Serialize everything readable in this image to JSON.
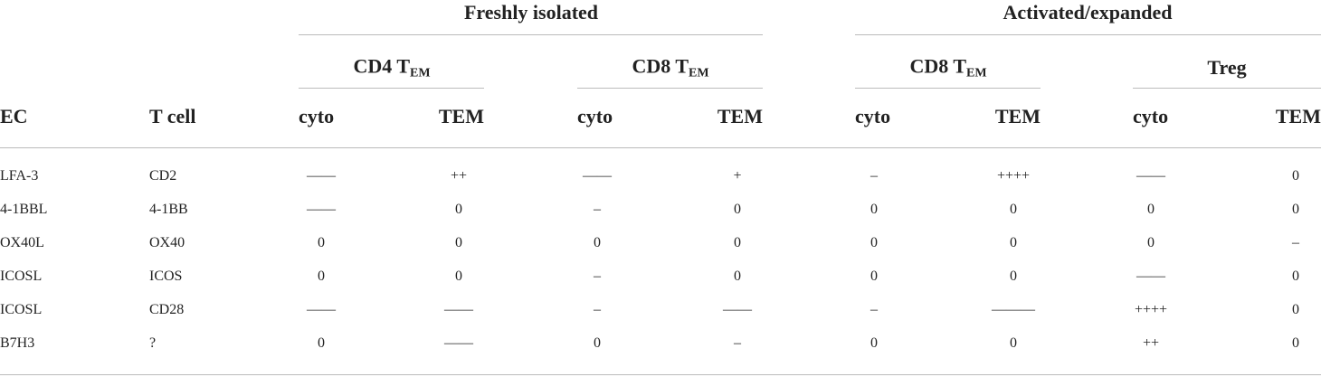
{
  "header": {
    "groups": [
      "Freshly isolated",
      "Activated/expanded"
    ],
    "subgroups": [
      {
        "text": "CD4 T",
        "sub": "EM"
      },
      {
        "text": "CD8 T",
        "sub": "EM"
      },
      {
        "text": "CD8 T",
        "sub": "EM"
      },
      {
        "text": "Treg"
      }
    ],
    "columns": [
      "EC",
      "T cell",
      "cyto",
      "TEM",
      "cyto",
      "TEM",
      "cyto",
      "TEM",
      "cyto",
      "TEM"
    ]
  },
  "table": {
    "rows": [
      [
        "LFA-3",
        "CD2",
        "——",
        "++",
        "——",
        "+",
        "–",
        "++++",
        "——",
        "0"
      ],
      [
        "4-1BBL",
        "4-1BB",
        "——",
        "0",
        "–",
        "0",
        "0",
        "0",
        "0",
        "0"
      ],
      [
        "OX40L",
        "OX40",
        "0",
        "0",
        "0",
        "0",
        "0",
        "0",
        "0",
        "–"
      ],
      [
        "ICOSL",
        "ICOS",
        "0",
        "0",
        "–",
        "0",
        "0",
        "0",
        "——",
        "0"
      ],
      [
        "ICOSL",
        "CD28",
        "——",
        "——",
        "–",
        "——",
        "–",
        "———",
        "++++",
        "0"
      ],
      [
        "B7H3",
        "?",
        "0",
        "——",
        "0",
        "–",
        "0",
        "0",
        "++",
        "0"
      ]
    ]
  }
}
